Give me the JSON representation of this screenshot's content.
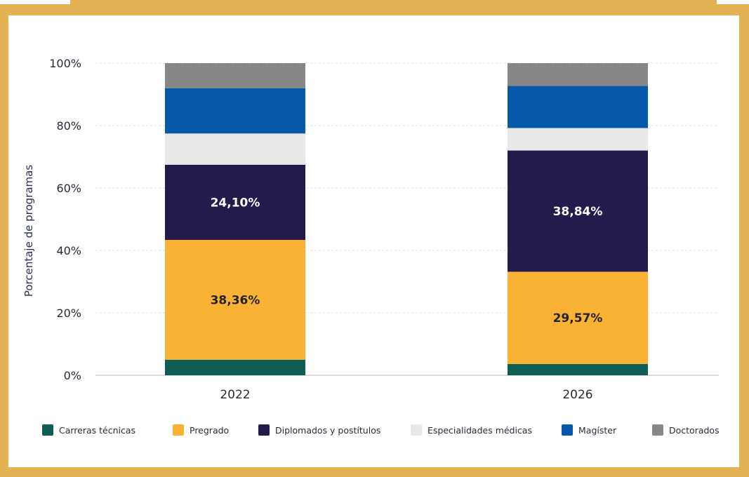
{
  "chart_data": {
    "type": "bar",
    "stacked": true,
    "categories": [
      "2022",
      "2026"
    ],
    "ylabel": "Porcentaje de programas",
    "ylim": [
      0,
      100
    ],
    "yticks": [
      "0%",
      "20%",
      "40%",
      "60%",
      "80%",
      "100%"
    ],
    "grid": true,
    "legend_position": "bottom",
    "series": [
      {
        "name": "Carreras técnicas",
        "color": "#0E5E56",
        "values": [
          5.0,
          3.6
        ]
      },
      {
        "name": "Pregrado",
        "color": "#F9B233",
        "values": [
          38.36,
          29.57
        ],
        "labels": [
          "38,36%",
          "29,57%"
        ],
        "label_color": "#232323"
      },
      {
        "name": "Diplomados y postítulos",
        "color": "#241A4B",
        "values": [
          24.1,
          38.84
        ],
        "labels": [
          "24,10%",
          "38,84%"
        ],
        "label_color": "#ffffff"
      },
      {
        "name": "Especialidades médicas",
        "color": "#E8E8E8",
        "values": [
          10.0,
          7.2
        ]
      },
      {
        "name": "Magíster",
        "color": "#0658AA",
        "values": [
          14.5,
          13.5
        ]
      },
      {
        "name": "Doctorados",
        "color": "#878787",
        "values": [
          8.04,
          7.29
        ]
      }
    ]
  }
}
